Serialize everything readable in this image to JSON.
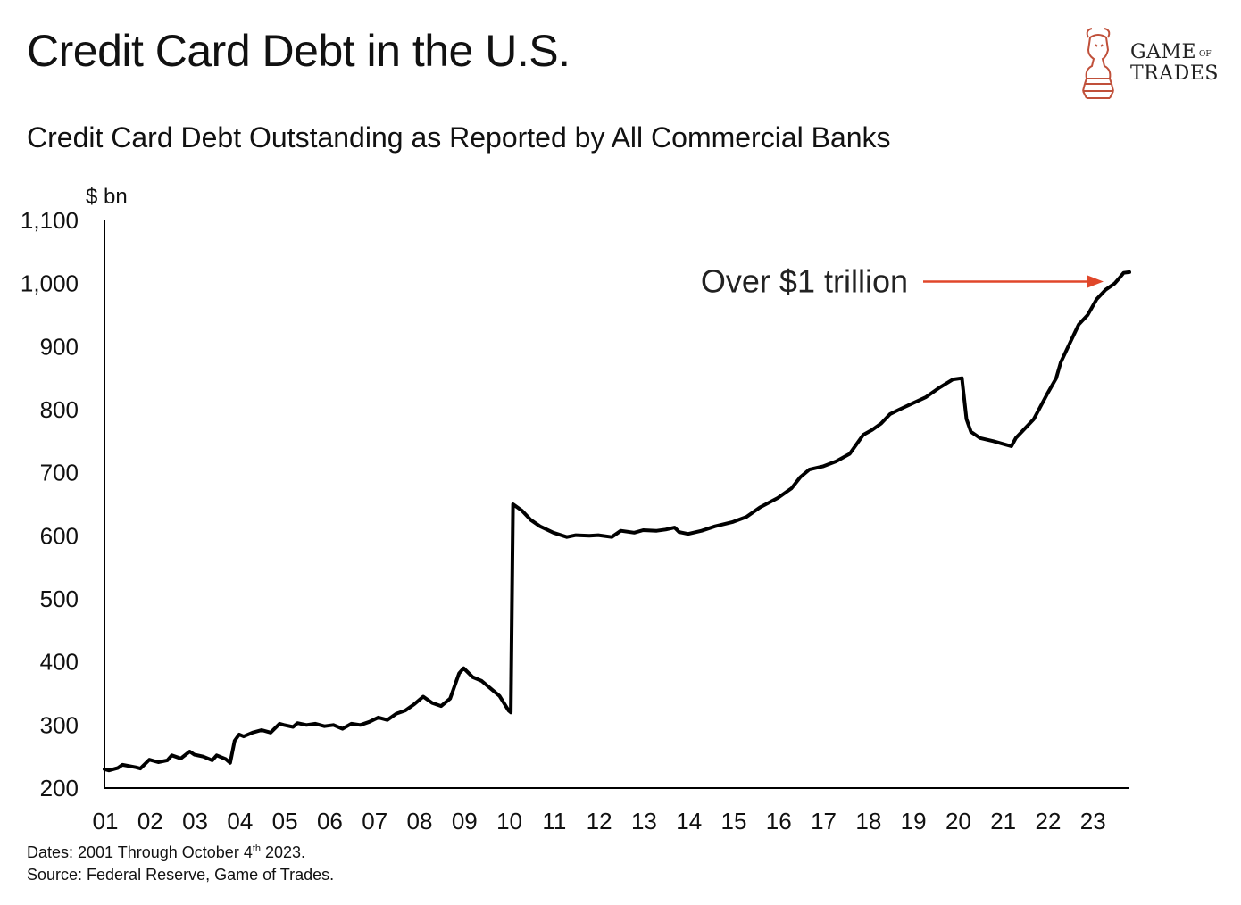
{
  "header": {
    "title": "Credit Card Debt in the U.S.",
    "subtitle": "Credit Card Debt Outstanding as Reported by All Commercial Banks"
  },
  "logo": {
    "line1": "GAME",
    "of": "OF",
    "line2": "TRADES",
    "icon": "bull-knight-icon",
    "color": "#c0503a"
  },
  "footer": {
    "dates_prefix": "Dates: 2001 Through October 4",
    "dates_sup": "th",
    "dates_suffix": " 2023.",
    "source": "Source: Federal Reserve, Game of Trades."
  },
  "chart_data": {
    "type": "line",
    "ylabel": "$ bn",
    "xlabel": "",
    "ylim": [
      200,
      1100
    ],
    "xlim": [
      2001.0,
      2023.83
    ],
    "yticks": [
      200,
      300,
      400,
      500,
      600,
      700,
      800,
      900,
      1000,
      1100
    ],
    "ytick_labels": [
      "200",
      "300",
      "400",
      "500",
      "600",
      "700",
      "800",
      "900",
      "1,000",
      "1,100"
    ],
    "xticks": [
      2001,
      2002,
      2003,
      2004,
      2005,
      2006,
      2007,
      2008,
      2009,
      2010,
      2011,
      2012,
      2013,
      2014,
      2015,
      2016,
      2017,
      2018,
      2019,
      2020,
      2021,
      2022,
      2023
    ],
    "xtick_labels": [
      "01",
      "02",
      "03",
      "04",
      "05",
      "06",
      "07",
      "08",
      "09",
      "10",
      "11",
      "12",
      "13",
      "14",
      "15",
      "16",
      "17",
      "18",
      "19",
      "20",
      "21",
      "22",
      "23"
    ],
    "grid": false,
    "line_color": "#000000",
    "annotation": {
      "text": "Over $1 trillion",
      "x": 2023.7,
      "y": 1017,
      "color": "#e0472a"
    },
    "series": [
      {
        "x": [
          2001.0,
          2001.1,
          2001.3,
          2001.4,
          2001.7,
          2001.8,
          2002.0,
          2002.2,
          2002.4,
          2002.5,
          2002.7,
          2002.9,
          2003.0,
          2003.2,
          2003.4,
          2003.5,
          2003.7,
          2003.8,
          2003.9,
          2004.0,
          2004.1,
          2004.3,
          2004.5,
          2004.7,
          2004.9,
          2005.0,
          2005.2,
          2005.3,
          2005.5,
          2005.7,
          2005.9,
          2006.1,
          2006.3,
          2006.5,
          2006.7,
          2006.9,
          2007.1,
          2007.3,
          2007.5,
          2007.7,
          2007.9,
          2008.1,
          2008.3,
          2008.5,
          2008.7,
          2008.9,
          2009.0,
          2009.2,
          2009.4,
          2009.6,
          2009.8,
          2010.0,
          2010.05,
          2010.1,
          2010.3,
          2010.5,
          2010.7,
          2011.0,
          2011.3,
          2011.5,
          2011.8,
          2012.0,
          2012.3,
          2012.5,
          2012.8,
          2013.0,
          2013.3,
          2013.5,
          2013.7,
          2013.8,
          2014.0,
          2014.3,
          2014.6,
          2015.0,
          2015.3,
          2015.6,
          2016.0,
          2016.3,
          2016.5,
          2016.7,
          2017.0,
          2017.3,
          2017.6,
          2017.9,
          2018.1,
          2018.3,
          2018.5,
          2018.7,
          2019.0,
          2019.3,
          2019.6,
          2019.9,
          2020.1,
          2020.2,
          2020.3,
          2020.5,
          2020.8,
          2021.0,
          2021.2,
          2021.3,
          2021.5,
          2021.7,
          2022.0,
          2022.2,
          2022.3,
          2022.5,
          2022.7,
          2022.9,
          2023.1,
          2023.3,
          2023.5,
          2023.6,
          2023.7,
          2023.83
        ],
        "values": [
          230,
          228,
          232,
          237,
          233,
          231,
          245,
          241,
          244,
          252,
          247,
          258,
          253,
          250,
          244,
          252,
          246,
          240,
          275,
          285,
          282,
          288,
          292,
          288,
          302,
          300,
          297,
          303,
          300,
          302,
          298,
          300,
          294,
          302,
          300,
          305,
          312,
          308,
          318,
          323,
          333,
          345,
          335,
          330,
          342,
          382,
          390,
          376,
          370,
          358,
          346,
          323,
          320,
          650,
          640,
          625,
          615,
          605,
          598,
          601,
          600,
          601,
          598,
          608,
          605,
          609,
          608,
          610,
          613,
          606,
          603,
          608,
          615,
          622,
          630,
          645,
          660,
          675,
          693,
          705,
          710,
          718,
          730,
          760,
          768,
          778,
          793,
          800,
          810,
          820,
          835,
          848,
          850,
          785,
          765,
          755,
          750,
          746,
          742,
          755,
          770,
          785,
          825,
          850,
          875,
          905,
          935,
          950,
          975,
          990,
          1000,
          1008,
          1017,
          1018
        ]
      }
    ]
  }
}
